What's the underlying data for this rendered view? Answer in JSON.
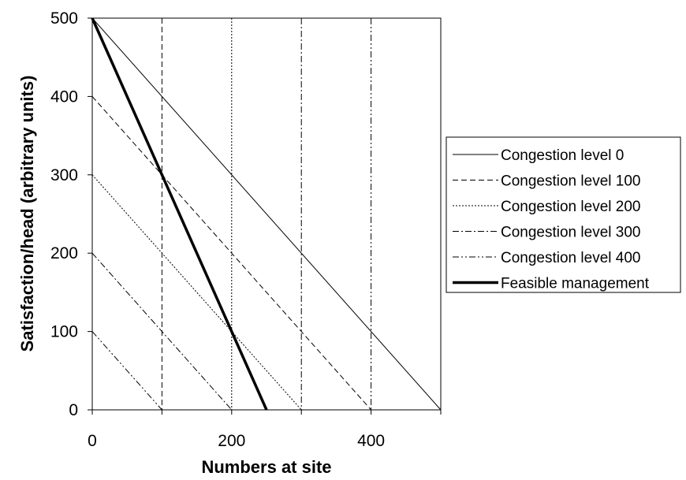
{
  "chart_data": {
    "type": "line",
    "xlabel": "Numbers at site",
    "ylabel": "Satisfaction/head (arbitrary units)",
    "xlim": [
      0,
      500
    ],
    "ylim": [
      0,
      500
    ],
    "xticks": [
      0,
      200,
      400
    ],
    "yticks": [
      0,
      100,
      200,
      300,
      400,
      500
    ],
    "grid": false,
    "legend_position": "right",
    "series": [
      {
        "name": "Congestion level 0",
        "dash": "solid",
        "points": [
          [
            0,
            500
          ],
          [
            500,
            0
          ]
        ]
      },
      {
        "name": "Congestion level 100",
        "dash": "dashed",
        "points": [
          [
            0,
            400
          ],
          [
            400,
            0
          ]
        ]
      },
      {
        "name": "Congestion level 200",
        "dash": "dotted",
        "points": [
          [
            0,
            300
          ],
          [
            300,
            0
          ]
        ]
      },
      {
        "name": "Congestion level 300",
        "dash": "dash-dot",
        "points": [
          [
            0,
            200
          ],
          [
            200,
            0
          ]
        ]
      },
      {
        "name": "Congestion level 400",
        "dash": "dash-dot-dot",
        "points": [
          [
            0,
            100
          ],
          [
            100,
            0
          ]
        ]
      },
      {
        "name": "Feasible management",
        "dash": "solid-thick",
        "points": [
          [
            0,
            500
          ],
          [
            250,
            0
          ]
        ]
      }
    ],
    "vertical_lines": [
      {
        "x": 100,
        "dash": "dashed"
      },
      {
        "x": 200,
        "dash": "dotted"
      },
      {
        "x": 300,
        "dash": "dash-dot"
      },
      {
        "x": 400,
        "dash": "dash-dot-dot"
      }
    ]
  }
}
